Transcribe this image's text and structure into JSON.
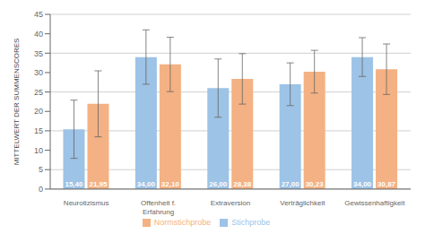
{
  "chart_data": {
    "type": "bar",
    "categories": [
      "Neurotizismus",
      "Offenheit f.\nErfahrung",
      "Extraversion",
      "Verträglichkeit",
      "Gewissenhaftigkeit"
    ],
    "ylabel": "MITTELWERT DER SUMMENSCORES",
    "series": [
      {
        "name": "Stichprobe",
        "color": "#9DC3E6",
        "values": [
          15.4,
          34.0,
          26.0,
          27.0,
          34.0
        ],
        "errors": [
          7.5,
          7.0,
          7.5,
          5.5,
          5.0
        ],
        "value_labels": [
          "15,40",
          "34,00",
          "26,00",
          "27,00",
          "34,00"
        ]
      },
      {
        "name": "Normstichprobe",
        "color": "#F4B183",
        "values": [
          21.95,
          32.1,
          28.38,
          30.23,
          30.87
        ],
        "errors": [
          8.5,
          7.0,
          6.5,
          5.5,
          6.5
        ],
        "value_labels": [
          "21,95",
          "32,10",
          "28,38",
          "30,23",
          "30,87"
        ]
      }
    ],
    "ylim": [
      0,
      45
    ],
    "yticks": [
      0,
      5,
      10,
      15,
      20,
      25,
      30,
      35,
      40,
      45
    ],
    "grid": true,
    "legend": "bottom",
    "data_labels": true
  }
}
